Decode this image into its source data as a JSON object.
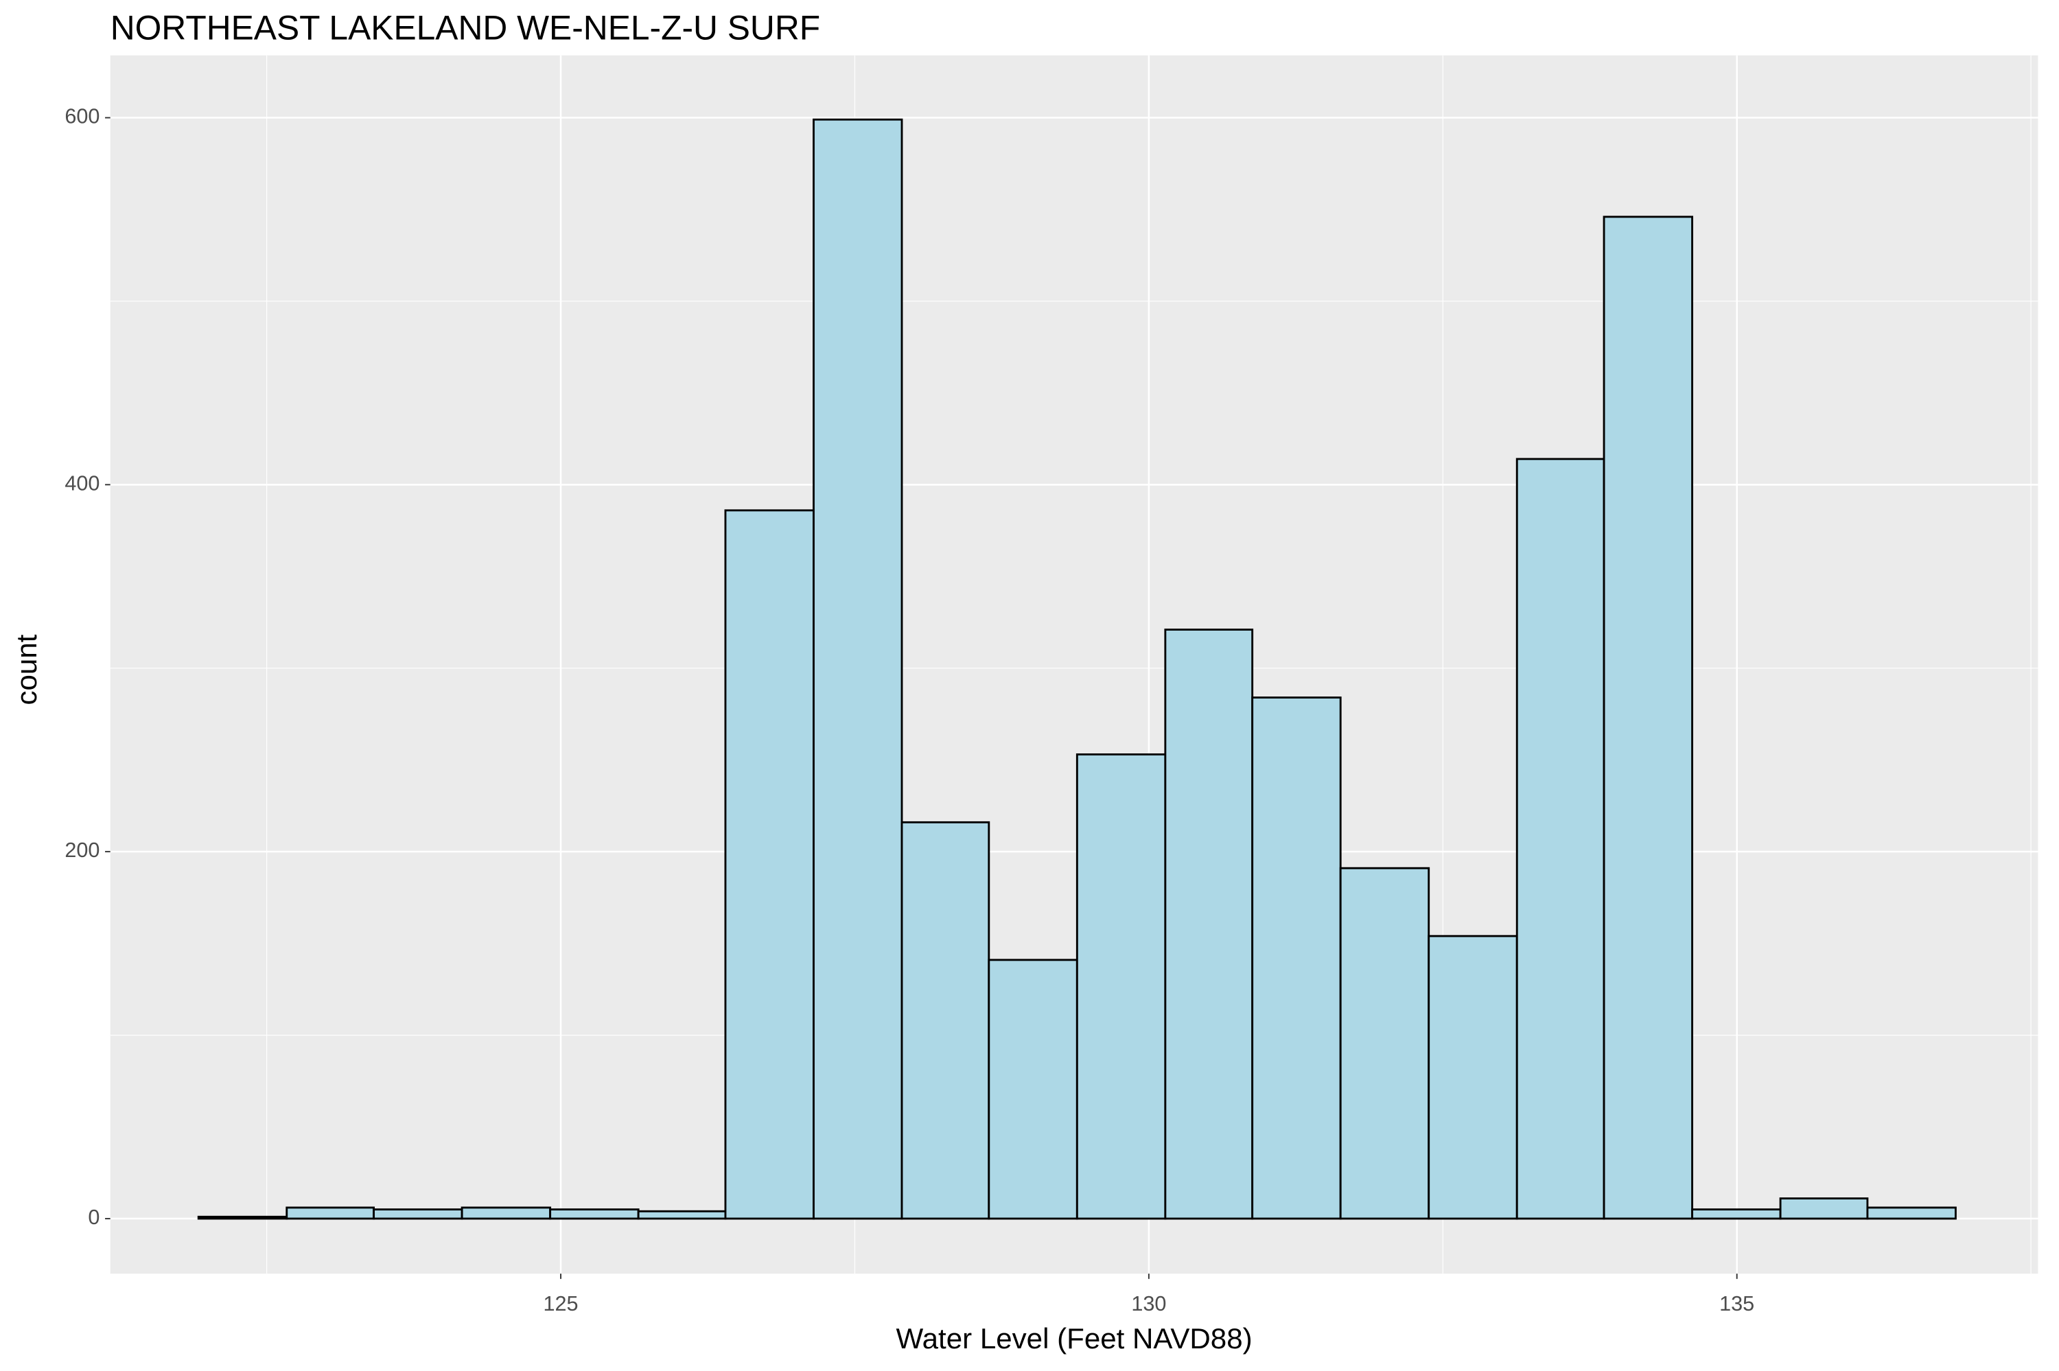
{
  "chart_data": {
    "type": "histogram",
    "title": "NORTHEAST LAKELAND WE-NEL-Z-U SURF",
    "x_label": "Water Level (Feet NAVD88)",
    "y_label": "count",
    "bins": [
      121.92,
      122.67,
      123.41,
      124.16,
      124.91,
      125.66,
      126.4,
      127.15,
      127.9,
      128.64,
      129.39,
      130.14,
      130.88,
      131.63,
      132.38,
      133.13,
      133.87,
      134.62,
      135.37,
      136.11,
      136.86
    ],
    "values": [
      1,
      6,
      5,
      6,
      5,
      4,
      386,
      599,
      216,
      141,
      253,
      321,
      284,
      191,
      154,
      414,
      546,
      5,
      11,
      6
    ],
    "color": "#add8e6",
    "edge_color": "#000000",
    "xlim": [
      121.17,
      137.56
    ],
    "ylim": [
      -30,
      634
    ],
    "xticks": [
      125,
      130,
      135
    ],
    "yticks": [
      0,
      200,
      400,
      600
    ],
    "minor_xticks": [
      122.5,
      127.5,
      132.5,
      137.5
    ],
    "minor_yticks": [
      100,
      300,
      500
    ],
    "grid": true
  }
}
